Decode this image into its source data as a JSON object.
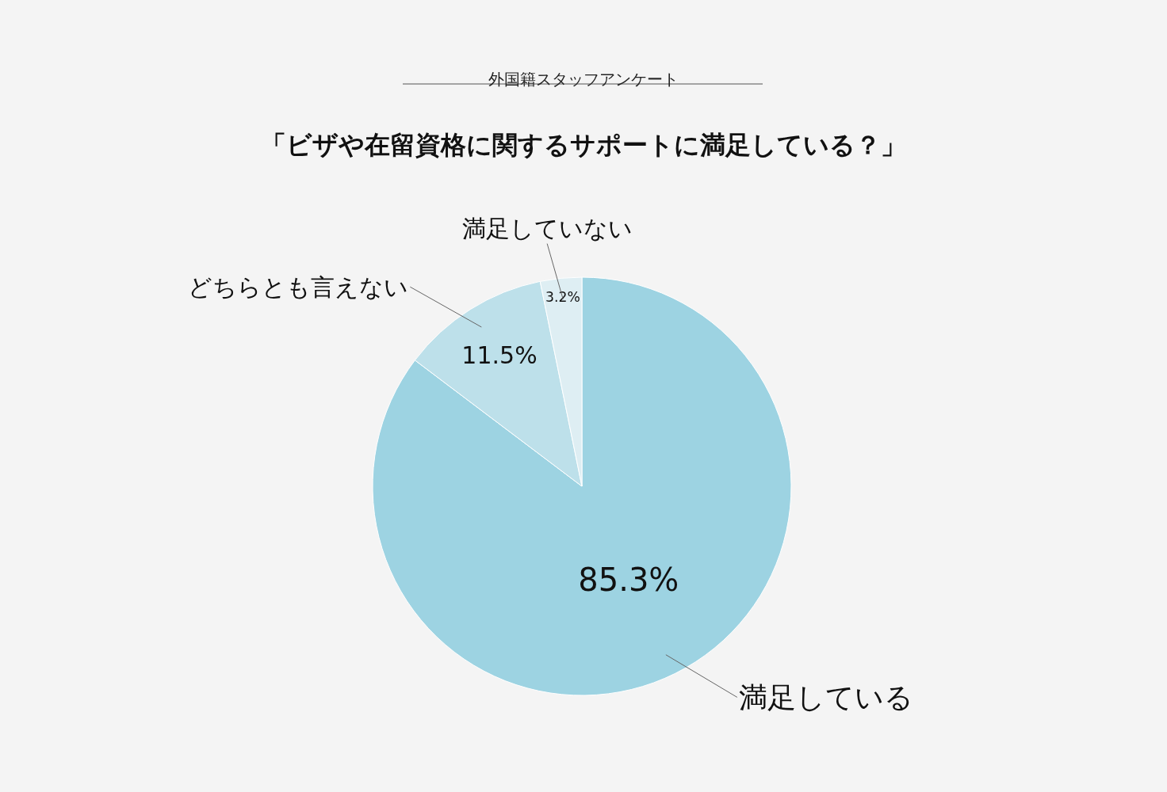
{
  "chart_data": {
    "type": "pie",
    "subtitle": "外国籍スタッフアンケート",
    "title": "「ビザや在留資格に関するサポートに満足している？」",
    "categories": [
      "満足している",
      "どちらとも言えない",
      "満足していない"
    ],
    "values": [
      85.3,
      11.5,
      3.2
    ],
    "colors": [
      "#9dd3e2",
      "#bde0ea",
      "#deeef3"
    ],
    "value_labels": [
      "85.3%",
      "11.5%",
      "3.2%"
    ],
    "legend": false
  }
}
